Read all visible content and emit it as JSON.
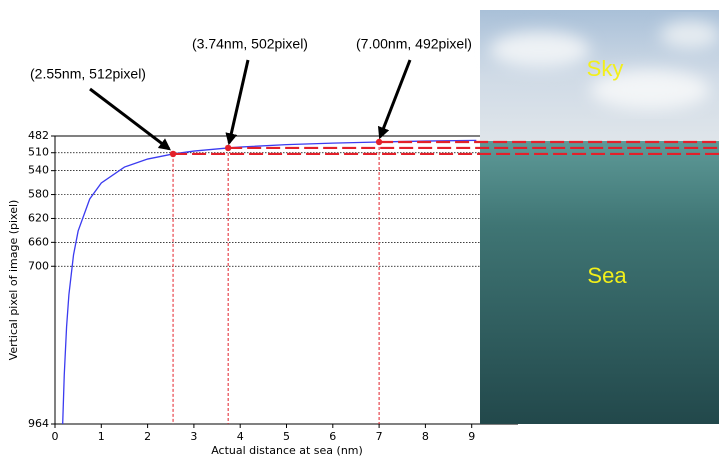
{
  "chart_data": {
    "type": "line",
    "xlabel": "Actual distance at sea (nm)",
    "ylabel": "Vertical pixel of image (pixel)",
    "xlim": [
      0,
      10
    ],
    "ylim": [
      964,
      482
    ],
    "xticks": [
      0,
      1,
      2,
      3,
      4,
      5,
      6,
      7,
      8,
      9
    ],
    "yticks": [
      482,
      510,
      540,
      580,
      620,
      660,
      700,
      964
    ],
    "grid": true,
    "curve": {
      "color": "#3b3bf0",
      "x": [
        0.166,
        0.2,
        0.25,
        0.3,
        0.4,
        0.5,
        0.75,
        1,
        1.5,
        2,
        2.55,
        3,
        3.74,
        4,
        5,
        6,
        7,
        8,
        9.1
      ],
      "y": [
        964,
        881.5,
        801.3,
        747.8,
        681,
        640.9,
        587.4,
        560.7,
        534,
        520.6,
        512,
        507.2,
        502,
        500.5,
        496.5,
        493.9,
        492,
        490.5,
        489.3
      ]
    },
    "points": [
      {
        "label": "(2.55nm, 512pixel)",
        "x": 2.55,
        "y": 512
      },
      {
        "label": "(3.74nm, 502pixel)",
        "x": 3.74,
        "y": 502
      },
      {
        "label": "(7.00nm, 492pixel)",
        "x": 7.0,
        "y": 492
      }
    ],
    "point_color": "#e3202a",
    "photo_labels": [
      "Sky",
      "Sea"
    ]
  }
}
